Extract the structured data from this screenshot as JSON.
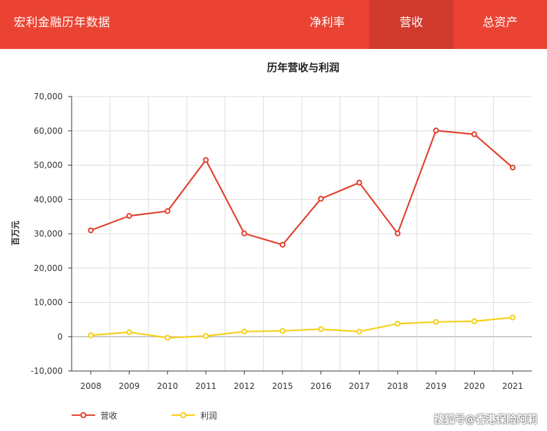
{
  "header": {
    "brand": "宏利金融历年数据",
    "tabs": [
      {
        "label": "净利率",
        "active": false
      },
      {
        "label": "营收",
        "active": true
      },
      {
        "label": "总资产",
        "active": false
      }
    ]
  },
  "watermark": "搜狐号@香港保险阿莉",
  "colors": {
    "header": "#ea4333",
    "header_active": "#d03a2d",
    "revenue": "#e2402d",
    "profit": "#f5cf17"
  },
  "chart_data": {
    "type": "line",
    "title": "历年营收与利润",
    "xlabel": "",
    "ylabel": "百万元",
    "categories": [
      "2008",
      "2009",
      "2010",
      "2011",
      "2012",
      "2015",
      "2016",
      "2017",
      "2018",
      "2019",
      "2020",
      "2021"
    ],
    "ylim": [
      -10000,
      70000
    ],
    "yticks": [
      "-10,000",
      "0",
      "10,000",
      "20,000",
      "30,000",
      "40,000",
      "50,000",
      "60,000",
      "70,000"
    ],
    "grid": true,
    "legend_position": "bottom-left",
    "series": [
      {
        "name": "营收",
        "color": "#e2402d",
        "values": [
          31000,
          35200,
          36600,
          51500,
          30100,
          26800,
          40200,
          44900,
          30100,
          60100,
          59000,
          49300
        ]
      },
      {
        "name": "利润",
        "color": "#f5cf17",
        "values": [
          400,
          1300,
          -300,
          200,
          1500,
          1700,
          2200,
          1500,
          3800,
          4300,
          4500,
          5600
        ]
      }
    ]
  }
}
